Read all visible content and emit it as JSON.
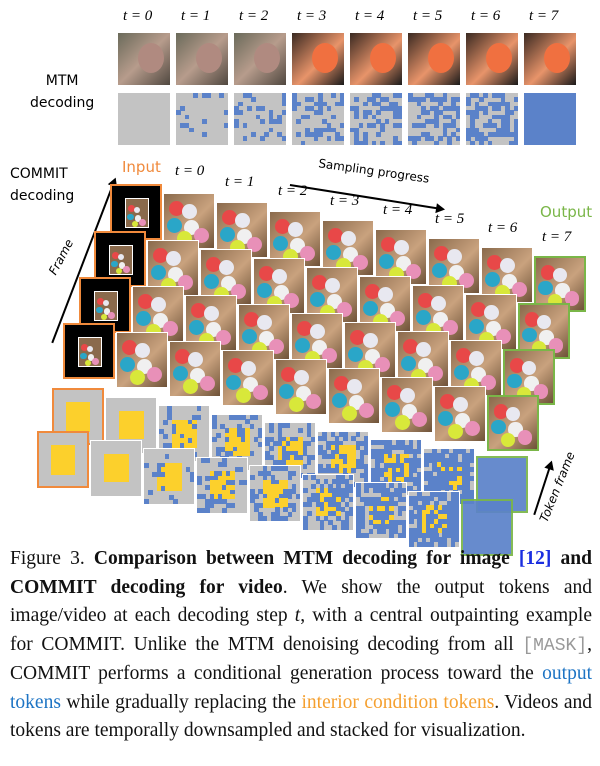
{
  "figure": {
    "mtm_label": [
      "MTM",
      "decoding"
    ],
    "commit_label": [
      "COMMIT",
      "decoding"
    ],
    "input_label": "Input",
    "output_label": "Output",
    "sampling_label": "Sampling progress",
    "frame_label": "Frame",
    "token_frame_label": "Token frame",
    "steps": [
      "t = 0",
      "t = 1",
      "t = 2",
      "t = 3",
      "t = 4",
      "t = 5",
      "t = 6",
      "t = 7"
    ],
    "colors": {
      "input": "#f08a3c",
      "output": "#7ab648",
      "token_blue": "#5b82c9",
      "token_yellow": "#fcd02c",
      "mask_gray": "#c3c3c3"
    }
  },
  "caption": {
    "prefix": "Figure 3. ",
    "bold": "Comparison between MTM decoding for image ",
    "ref": "[12]",
    "bold2": " and COMMIT decoding for video",
    "t1": ". We show the output tokens and image/video at each decoding step ",
    "t_var": "t",
    "t2": ", with a central outpainting example for COMMIT. Unlike the MTM denoising decoding from all ",
    "mask": "[MASK]",
    "t3": ", COMMIT performs a conditional generation process toward the ",
    "blue": "output tokens",
    "t4": " while gradually replacing the ",
    "orange": "interior condition tokens",
    "t5": ". Videos and tokens are temporally downsampled and stacked for visualization."
  }
}
